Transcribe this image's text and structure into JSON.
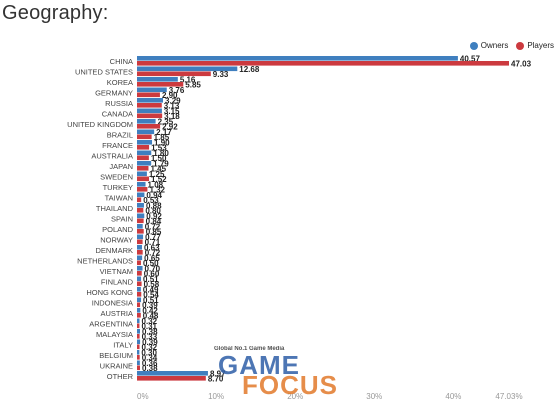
{
  "page": {
    "title": "Geography:"
  },
  "legend": {
    "owners": "Owners",
    "players": "Players"
  },
  "colors": {
    "owners": "#3f7fbf",
    "players": "#cc3a3f",
    "axis_text": "#999999",
    "label_text": "#444444"
  },
  "watermark": {
    "tagline": "Global No.1 Game Media",
    "word1": "GAME",
    "word2": "FOCUS"
  },
  "chart_data": {
    "type": "bar",
    "orientation": "horizontal",
    "title": "Geography:",
    "categories": [
      "CHINA",
      "UNITED STATES",
      "KOREA",
      "GERMANY",
      "RUSSIA",
      "CANADA",
      "UNITED KINGDOM",
      "BRAZIL",
      "FRANCE",
      "AUSTRALIA",
      "JAPAN",
      "SWEDEN",
      "TURKEY",
      "TAIWAN",
      "THAILAND",
      "SPAIN",
      "POLAND",
      "NORWAY",
      "DENMARK",
      "NETHERLANDS",
      "VIETNAM",
      "FINLAND",
      "HONG KONG",
      "INDONESIA",
      "AUSTRIA",
      "ARGENTINA",
      "MALAYSIA",
      "ITALY",
      "BELGIUM",
      "UKRAINE",
      "OTHER"
    ],
    "series": [
      {
        "name": "Owners",
        "color": "#3f7fbf",
        "values": [
          40.57,
          12.68,
          5.16,
          3.76,
          3.29,
          3.15,
          2.35,
          2.17,
          1.9,
          1.8,
          1.79,
          1.25,
          1.08,
          0.94,
          0.88,
          0.92,
          0.72,
          0.77,
          0.63,
          0.65,
          0.7,
          0.51,
          0.49,
          0.51,
          0.42,
          0.32,
          0.38,
          0.39,
          0.3,
          0.36,
          8.97
        ]
      },
      {
        "name": "Players",
        "color": "#cc3a3f",
        "values": [
          47.03,
          9.33,
          5.85,
          2.9,
          3.13,
          3.18,
          2.92,
          1.85,
          1.53,
          1.5,
          1.45,
          1.52,
          1.32,
          0.53,
          0.8,
          0.84,
          0.85,
          0.71,
          0.72,
          0.5,
          0.6,
          0.58,
          0.54,
          0.39,
          0.48,
          0.31,
          0.33,
          0.32,
          0.34,
          0.38,
          8.7
        ]
      }
    ],
    "value_labels": [
      [
        "40.57",
        "47.03"
      ],
      [
        "12.68",
        "9.33"
      ],
      [
        "5.16",
        "5.85"
      ],
      [
        "3.76",
        "2.90"
      ],
      [
        "3.29",
        "3.13"
      ],
      [
        "3.15",
        "3.18"
      ],
      [
        "2.35",
        "2.92"
      ],
      [
        "2.17",
        "1.85"
      ],
      [
        "1.90",
        "1.53"
      ],
      [
        "1.80",
        "1.50"
      ],
      [
        "1.79",
        "1.45"
      ],
      [
        "1.25",
        "1.52"
      ],
      [
        "1.08",
        "1.32"
      ],
      [
        "0.94",
        "0.53"
      ],
      [
        "0.88",
        "0.80"
      ],
      [
        "0.92",
        "0.84"
      ],
      [
        "0.72",
        "0.85"
      ],
      [
        "0.77",
        "0.71"
      ],
      [
        "0.63",
        "0.72"
      ],
      [
        "0.65",
        "0.50"
      ],
      [
        "0.70",
        "0.60"
      ],
      [
        "0.51",
        "0.58"
      ],
      [
        "0.49",
        "0.54"
      ],
      [
        "0.51",
        "0.39"
      ],
      [
        "0.42",
        "0.48"
      ],
      [
        "0.32",
        "0.31"
      ],
      [
        "0.38",
        "0.33"
      ],
      [
        "0.39",
        "0.32"
      ],
      [
        "0.30",
        "0.34"
      ],
      [
        "0.36",
        "0.38"
      ],
      [
        "8.97",
        "8.70"
      ]
    ],
    "x_ticks": [
      0,
      10,
      20,
      30,
      40,
      47.03
    ],
    "x_tick_labels": [
      "0%",
      "10%",
      "20%",
      "30%",
      "40%",
      "47.03%"
    ],
    "xlim": [
      0,
      47.03
    ],
    "legend_position": "top-right",
    "grid": false
  }
}
